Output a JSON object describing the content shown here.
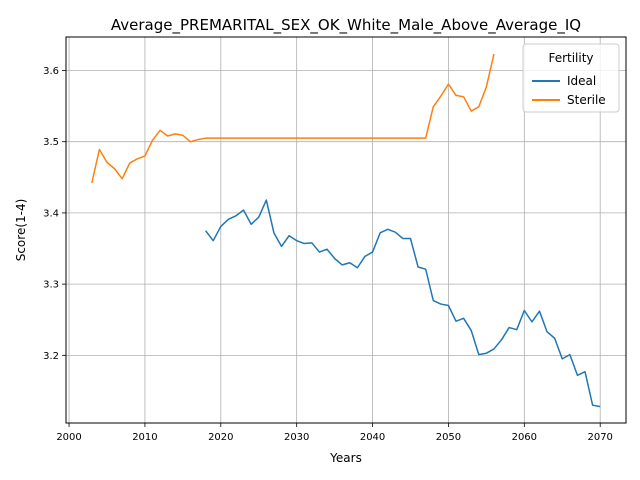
{
  "chart_data": {
    "type": "line",
    "title": "Average_PREMARITAL_SEX_OK_White_Male_Above_Average_IQ",
    "xlabel": "Years",
    "ylabel": "Score(1-4)",
    "xlim": [
      1999.6,
      2073.4
    ],
    "ylim": [
      3.105,
      3.647
    ],
    "xticks": [
      2000,
      2010,
      2020,
      2030,
      2040,
      2050,
      2060,
      2070
    ],
    "yticks": [
      3.2,
      3.3,
      3.4,
      3.5,
      3.6
    ],
    "ytick_labels": [
      "3.2",
      "3.3",
      "3.4",
      "3.5",
      "3.6"
    ],
    "grid": true,
    "legend": {
      "title": "Fertility",
      "placement": "top-right"
    },
    "series": [
      {
        "name": "Ideal",
        "color": "#1f77b4",
        "x": [
          2018,
          2019,
          2020,
          2021,
          2022,
          2023,
          2024,
          2025,
          2026,
          2027,
          2028,
          2029,
          2030,
          2031,
          2032,
          2033,
          2034,
          2035,
          2036,
          2037,
          2038,
          2039,
          2040,
          2041,
          2042,
          2043,
          2044,
          2045,
          2046,
          2047,
          2048,
          2049,
          2050,
          2051,
          2052,
          2053,
          2054,
          2055,
          2056,
          2057,
          2058,
          2059,
          2060,
          2061,
          2062,
          2063,
          2064,
          2065,
          2066,
          2067,
          2068,
          2069,
          2070
        ],
        "values": [
          3.375,
          3.361,
          3.381,
          3.391,
          3.396,
          3.404,
          3.384,
          3.394,
          3.418,
          3.372,
          3.353,
          3.368,
          3.361,
          3.357,
          3.358,
          3.345,
          3.349,
          3.336,
          3.327,
          3.33,
          3.323,
          3.339,
          3.345,
          3.372,
          3.377,
          3.373,
          3.364,
          3.364,
          3.324,
          3.321,
          3.277,
          3.272,
          3.27,
          3.248,
          3.252,
          3.235,
          3.201,
          3.203,
          3.209,
          3.222,
          3.239,
          3.236,
          3.263,
          3.247,
          3.262,
          3.233,
          3.224,
          3.195,
          3.201,
          3.172,
          3.177,
          3.13,
          3.128
        ]
      },
      {
        "name": "Sterile",
        "color": "#ff7f0e",
        "x": [
          2003,
          2004,
          2005,
          2006,
          2007,
          2008,
          2009,
          2010,
          2011,
          2012,
          2013,
          2014,
          2015,
          2016,
          2017,
          2018,
          2019,
          2020,
          2021,
          2022,
          2023,
          2024,
          2025,
          2026,
          2027,
          2028,
          2029,
          2030,
          2031,
          2032,
          2033,
          2034,
          2035,
          2036,
          2037,
          2038,
          2039,
          2040,
          2041,
          2042,
          2043,
          2044,
          2045,
          2046,
          2047,
          2048,
          2049,
          2050,
          2051,
          2052,
          2053,
          2054,
          2055,
          2056
        ],
        "values": [
          3.442,
          3.489,
          3.471,
          3.462,
          3.448,
          3.47,
          3.476,
          3.48,
          3.502,
          3.516,
          3.508,
          3.511,
          3.509,
          3.5,
          3.503,
          3.505,
          3.505,
          3.505,
          3.505,
          3.505,
          3.505,
          3.505,
          3.505,
          3.505,
          3.505,
          3.505,
          3.505,
          3.505,
          3.505,
          3.505,
          3.505,
          3.505,
          3.505,
          3.505,
          3.505,
          3.505,
          3.505,
          3.505,
          3.505,
          3.505,
          3.505,
          3.505,
          3.505,
          3.505,
          3.505,
          3.549,
          3.564,
          3.581,
          3.565,
          3.563,
          3.543,
          3.549,
          3.577,
          3.623
        ]
      }
    ]
  }
}
